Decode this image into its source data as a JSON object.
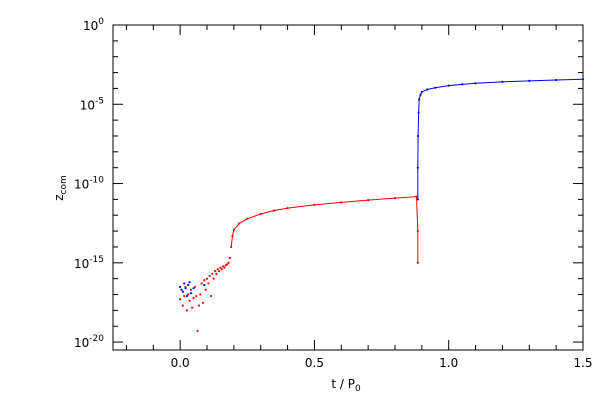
{
  "chart_data": {
    "type": "scatter",
    "title": "",
    "xlabel": "t / P",
    "xlabel_sub": "0",
    "ylabel": "z",
    "ylabel_sub": "com",
    "xlim": [
      -0.25,
      1.5
    ],
    "ylim_log10": [
      -20.5,
      0
    ],
    "yscale": "log",
    "grid": false,
    "x_ticks": [
      0.0,
      0.5,
      1.0,
      1.5
    ],
    "x_tick_labels": [
      "0.0",
      "0.5",
      "1.0",
      "1.5"
    ],
    "y_ticks_log10": [
      0,
      -5,
      -10,
      -15,
      -20
    ],
    "y_tick_labels": [
      {
        "base": "10",
        "exp": "0"
      },
      {
        "base": "10",
        "exp": "-5"
      },
      {
        "base": "10",
        "exp": "-10"
      },
      {
        "base": "10",
        "exp": "-15"
      },
      {
        "base": "10",
        "exp": "-20"
      }
    ],
    "series": [
      {
        "color": "#ff0000",
        "points": [
          [
            0.0,
            5e-18
          ],
          [
            0.01,
            2e-18
          ],
          [
            0.015,
            8e-18
          ],
          [
            0.02,
            3e-17
          ],
          [
            0.025,
            1e-18
          ],
          [
            0.03,
            1e-17
          ],
          [
            0.035,
            4e-18
          ],
          [
            0.04,
            2e-17
          ],
          [
            0.045,
            1.5e-18
          ],
          [
            0.05,
            6e-18
          ],
          [
            0.055,
            3e-17
          ],
          [
            0.06,
            8e-18
          ],
          [
            0.065,
            5e-20
          ],
          [
            0.07,
            2e-18
          ],
          [
            0.075,
            1e-17
          ],
          [
            0.08,
            5e-17
          ],
          [
            0.085,
            3e-18
          ],
          [
            0.09,
            8e-17
          ],
          [
            0.095,
            2e-17
          ],
          [
            0.1,
            1e-16
          ],
          [
            0.105,
            5e-17
          ],
          [
            0.11,
            1.5e-16
          ],
          [
            0.115,
            8e-18
          ],
          [
            0.12,
            2e-16
          ],
          [
            0.125,
            1e-16
          ],
          [
            0.13,
            3e-16
          ],
          [
            0.135,
            2e-16
          ],
          [
            0.14,
            4e-16
          ],
          [
            0.145,
            3e-16
          ],
          [
            0.15,
            5e-16
          ],
          [
            0.155,
            4e-16
          ],
          [
            0.16,
            6e-16
          ],
          [
            0.165,
            5e-16
          ],
          [
            0.17,
            7e-16
          ],
          [
            0.175,
            8e-16
          ],
          [
            0.18,
            1e-15
          ],
          [
            0.185,
            2e-15
          ],
          [
            0.19,
            1e-14
          ],
          [
            0.195,
            5e-14
          ],
          [
            0.2,
            1.2e-13
          ],
          [
            0.22,
            3e-13
          ],
          [
            0.25,
            6e-13
          ],
          [
            0.3,
            1.2e-12
          ],
          [
            0.35,
            2e-12
          ],
          [
            0.4,
            2.8e-12
          ],
          [
            0.5,
            4.5e-12
          ],
          [
            0.6,
            6.5e-12
          ],
          [
            0.7,
            9e-12
          ],
          [
            0.8,
            1.2e-11
          ],
          [
            0.88,
            1.5e-11
          ],
          [
            0.885,
            1e-13
          ],
          [
            0.885,
            1e-15
          ]
        ]
      },
      {
        "color": "#0000ff",
        "points": [
          [
            0.0,
            3e-17
          ],
          [
            0.005,
            2e-17
          ],
          [
            0.01,
            1.5e-17
          ],
          [
            0.015,
            5e-17
          ],
          [
            0.02,
            2.5e-17
          ],
          [
            0.025,
            8e-18
          ],
          [
            0.03,
            4e-17
          ],
          [
            0.035,
            6e-17
          ],
          [
            0.04,
            1.2e-17
          ],
          [
            0.05,
            2.5e-17
          ],
          [
            0.09,
            4e-17
          ],
          [
            0.885,
            1e-11
          ],
          [
            0.885,
            1e-09
          ],
          [
            0.886,
            1e-07
          ],
          [
            0.888,
            3e-06
          ],
          [
            0.89,
            2e-05
          ],
          [
            0.895,
            4e-05
          ],
          [
            0.9,
            6e-05
          ],
          [
            0.92,
            8.5e-05
          ],
          [
            0.95,
            0.00011
          ],
          [
            1.0,
            0.00015
          ],
          [
            1.05,
            0.00018
          ],
          [
            1.1,
            0.00021
          ],
          [
            1.2,
            0.00026
          ],
          [
            1.3,
            0.0003
          ],
          [
            1.4,
            0.00034
          ],
          [
            1.5,
            0.00038
          ]
        ]
      }
    ]
  }
}
